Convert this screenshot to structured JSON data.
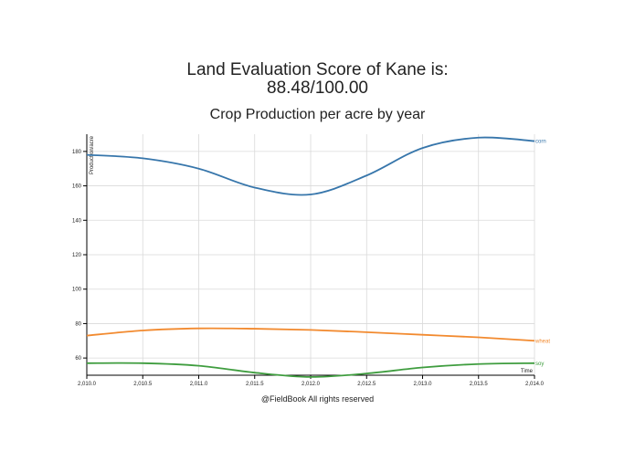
{
  "header": {
    "title_line1": "Land Evaluation Score of Kane is:",
    "title_line2": "88.48/100.00"
  },
  "footer": {
    "text": "@FieldBook All rights reserved"
  },
  "chart_data": {
    "type": "line",
    "title": "Crop Production per acre by year",
    "xlabel": "Time",
    "ylabel": "Production/acre",
    "xlim": [
      2010.0,
      2014.0
    ],
    "ylim": [
      50,
      190
    ],
    "grid": true,
    "x_ticks": [
      2010.0,
      2010.5,
      2011.0,
      2011.5,
      2012.0,
      2012.5,
      2013.0,
      2013.5,
      2014.0
    ],
    "x_tick_labels": [
      "2,010.0",
      "2,010.5",
      "2,011.0",
      "2,011.5",
      "2,012.0",
      "2,012.5",
      "2,013.0",
      "2,013.5",
      "2,014.0"
    ],
    "y_ticks": [
      60,
      80,
      100,
      120,
      140,
      160,
      180
    ],
    "y_tick_labels": [
      "60",
      "80",
      "100",
      "120",
      "140",
      "160",
      "180"
    ],
    "series": [
      {
        "name": "corn",
        "color": "#3776ab",
        "x": [
          2010.0,
          2010.5,
          2011.0,
          2011.5,
          2012.0,
          2012.5,
          2013.0,
          2013.5,
          2014.0
        ],
        "y": [
          178,
          176,
          170,
          159,
          155,
          166,
          182,
          188,
          186
        ]
      },
      {
        "name": "wheat",
        "color": "#f28a2f",
        "x": [
          2010.0,
          2010.5,
          2011.0,
          2011.5,
          2012.0,
          2012.5,
          2013.0,
          2013.5,
          2014.0
        ],
        "y": [
          73,
          76,
          77.2,
          77,
          76.3,
          75,
          73.5,
          72,
          70
        ]
      },
      {
        "name": "soy",
        "color": "#3f9d3f",
        "x": [
          2010.0,
          2010.5,
          2011.0,
          2011.5,
          2012.0,
          2012.5,
          2013.0,
          2013.5,
          2014.0
        ],
        "y": [
          57,
          57,
          55.5,
          51.5,
          49,
          51,
          54.5,
          56.5,
          57
        ]
      }
    ]
  }
}
